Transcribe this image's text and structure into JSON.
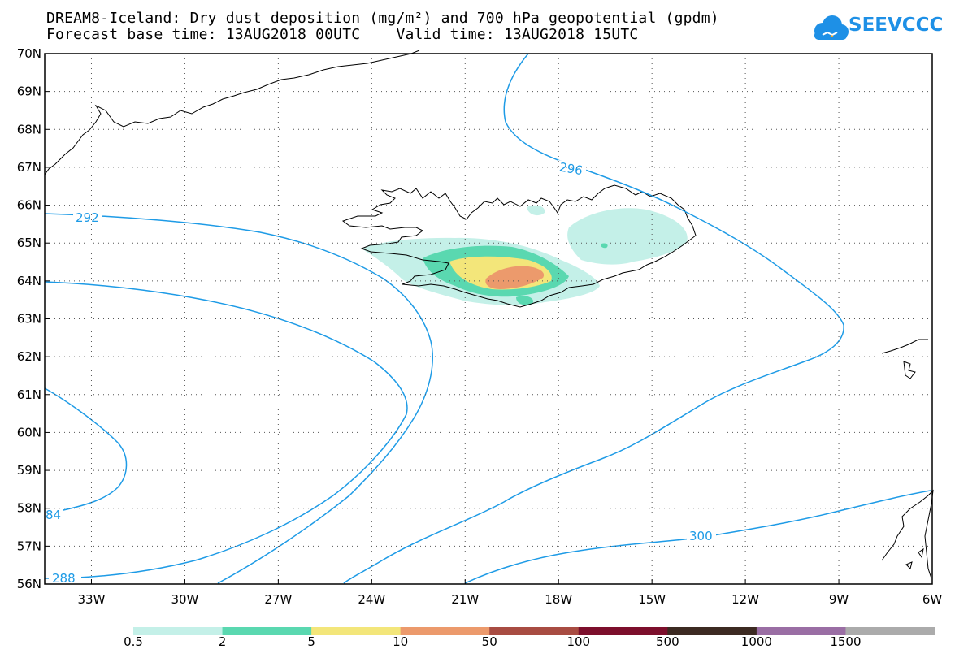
{
  "title": {
    "line1": "DREAM8-Iceland: Dry dust deposition (mg/m²) and 700 hPa geopotential (gpdm)",
    "line2": "Forecast base time: 13AUG2018 00UTC    Valid time: 13AUG2018 15UTC"
  },
  "logo": {
    "text": "SEEVCCC",
    "icon": "cloud-icon"
  },
  "map": {
    "lat_labels": [
      "70N",
      "69N",
      "68N",
      "67N",
      "66N",
      "65N",
      "64N",
      "63N",
      "62N",
      "61N",
      "60N",
      "59N",
      "58N",
      "57N",
      "56N"
    ],
    "lon_labels": [
      "33W",
      "30W",
      "27W",
      "24W",
      "21W",
      "18W",
      "15W",
      "12W",
      "9W",
      "6W"
    ],
    "lat_range": [
      56,
      70
    ],
    "lon_range": [
      -34.5,
      -6
    ],
    "grid": "dotted"
  },
  "contours": {
    "color": "#1e9be6",
    "labels": [
      "292",
      "296",
      "300",
      "288",
      "84"
    ]
  },
  "colorbar": {
    "labels": [
      "0.5",
      "2",
      "5",
      "10",
      "50",
      "100",
      "500",
      "1000",
      "1500"
    ],
    "colors": [
      "#c4f0e8",
      "#5ad8b0",
      "#f3e67a",
      "#ec9a6c",
      "#a84c42",
      "#7c0f2c",
      "#3c2a22",
      "#9a6ea4",
      "#ababab"
    ]
  }
}
